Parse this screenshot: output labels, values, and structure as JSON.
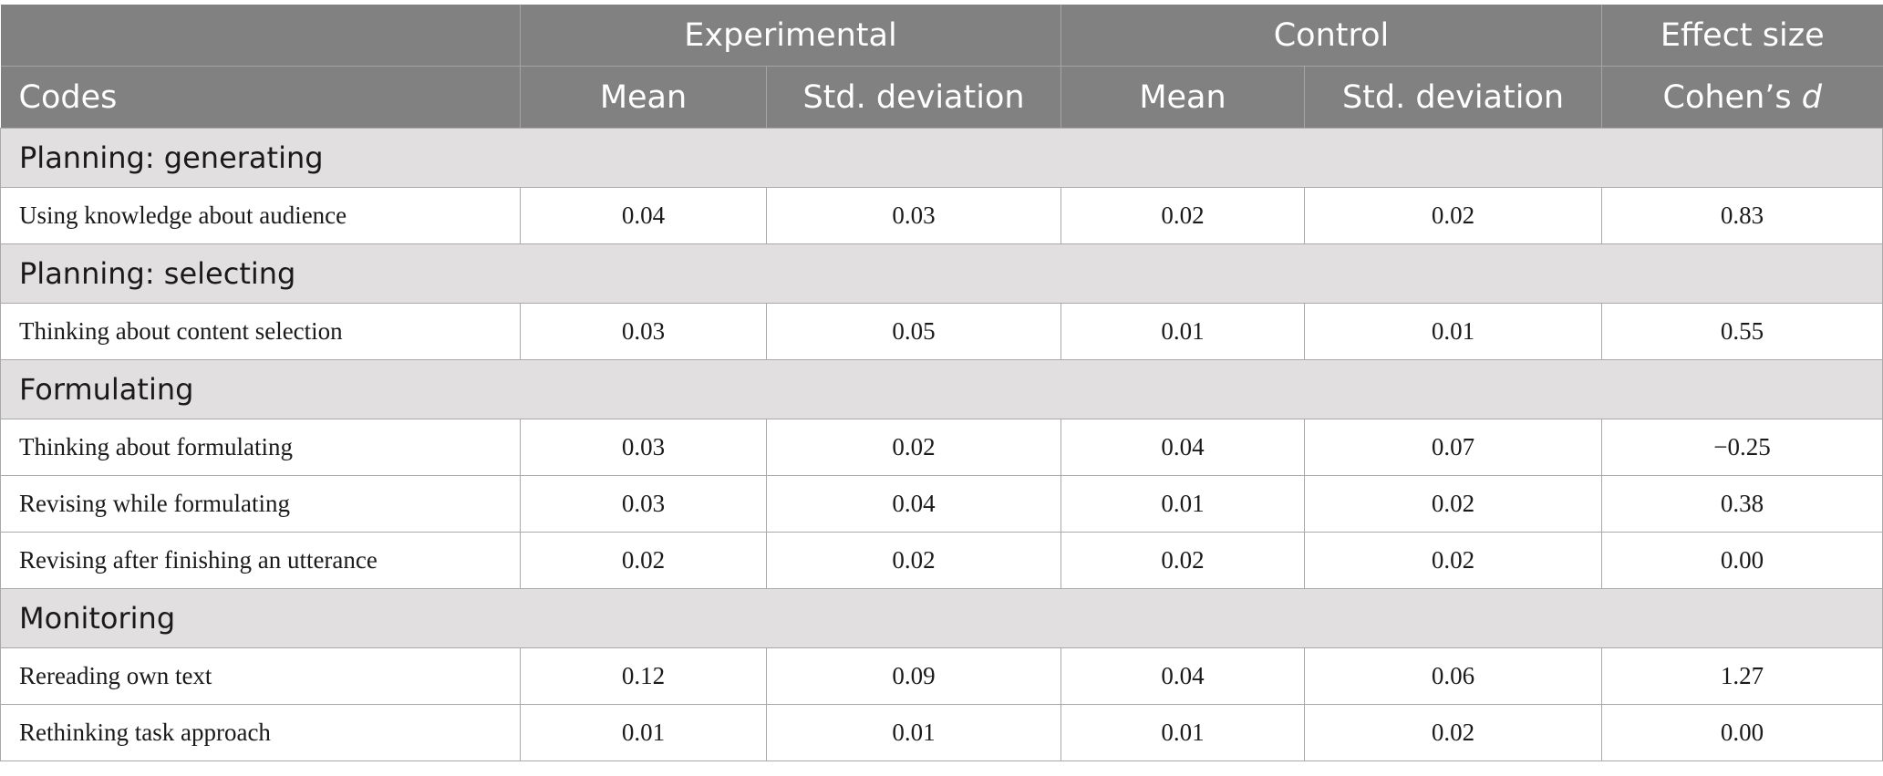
{
  "header": {
    "groups": {
      "experimental": "Experimental",
      "control": "Control",
      "effect": "Effect size"
    },
    "columns": {
      "codes": "Codes",
      "exp_mean": "Mean",
      "exp_sd": "Std. deviation",
      "ctrl_mean": "Mean",
      "ctrl_sd": "Std. deviation",
      "cohens_prefix": "Cohen’s ",
      "cohens_d": "d"
    }
  },
  "sections": [
    {
      "title": "Planning: generating",
      "rows": [
        {
          "code": "Using knowledge about audience",
          "exp_mean": "0.04",
          "exp_sd": "0.03",
          "ctrl_mean": "0.02",
          "ctrl_sd": "0.02",
          "cohens_d": "0.83"
        }
      ]
    },
    {
      "title": "Planning: selecting",
      "rows": [
        {
          "code": "Thinking about content selection",
          "exp_mean": "0.03",
          "exp_sd": "0.05",
          "ctrl_mean": "0.01",
          "ctrl_sd": "0.01",
          "cohens_d": "0.55"
        }
      ]
    },
    {
      "title": "Formulating",
      "rows": [
        {
          "code": "Thinking about formulating",
          "exp_mean": "0.03",
          "exp_sd": "0.02",
          "ctrl_mean": "0.04",
          "ctrl_sd": "0.07",
          "cohens_d": "−0.25"
        },
        {
          "code": "Revising while formulating",
          "exp_mean": "0.03",
          "exp_sd": "0.04",
          "ctrl_mean": "0.01",
          "ctrl_sd": "0.02",
          "cohens_d": "0.38"
        },
        {
          "code": "Revising after finishing an utterance",
          "exp_mean": "0.02",
          "exp_sd": "0.02",
          "ctrl_mean": "0.02",
          "ctrl_sd": "0.02",
          "cohens_d": "0.00"
        }
      ]
    },
    {
      "title": "Monitoring",
      "rows": [
        {
          "code": "Rereading own text",
          "exp_mean": "0.12",
          "exp_sd": "0.09",
          "ctrl_mean": "0.04",
          "ctrl_sd": "0.06",
          "cohens_d": "1.27"
        },
        {
          "code": "Rethinking task approach",
          "exp_mean": "0.01",
          "exp_sd": "0.01",
          "ctrl_mean": "0.01",
          "ctrl_sd": "0.02",
          "cohens_d": "0.00"
        }
      ]
    }
  ]
}
